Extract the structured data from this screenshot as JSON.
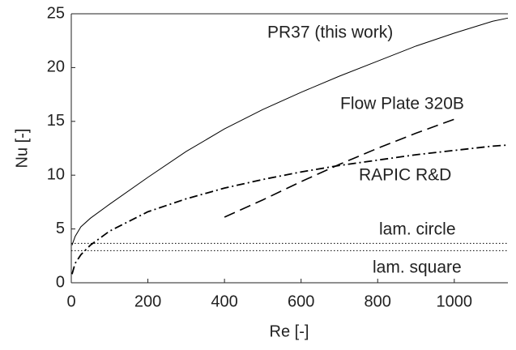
{
  "chart_data": {
    "type": "line",
    "xlabel": "Re [-]",
    "ylabel": "Nu [-]",
    "xlim": [
      0,
      1140
    ],
    "ylim": [
      0,
      25
    ],
    "xticks": [
      0,
      200,
      400,
      600,
      800,
      1000
    ],
    "yticks": [
      0,
      5,
      10,
      15,
      20,
      25
    ],
    "grid": false,
    "series": [
      {
        "name": "PR37 (this work)",
        "color": "#000000",
        "style": "solid",
        "x": [
          2,
          10,
          25,
          50,
          100,
          200,
          300,
          400,
          500,
          600,
          700,
          800,
          900,
          1000,
          1100,
          1140
        ],
        "values": [
          3.5,
          4.3,
          5.2,
          6.0,
          7.3,
          9.8,
          12.2,
          14.3,
          16.1,
          17.7,
          19.2,
          20.6,
          22.0,
          23.2,
          24.3,
          24.6
        ]
      },
      {
        "name": "Flow Plate 320B",
        "color": "#000000",
        "style": "dashed",
        "x": [
          400,
          500,
          600,
          700,
          800,
          900,
          1000
        ],
        "values": [
          6.1,
          7.7,
          9.4,
          11.0,
          12.5,
          13.9,
          15.2
        ]
      },
      {
        "name": "RAPIC R&D",
        "color": "#000000",
        "style": "dashdot",
        "x": [
          2,
          10,
          25,
          50,
          100,
          200,
          300,
          400,
          500,
          600,
          700,
          800,
          900,
          1000,
          1100,
          1140
        ],
        "values": [
          0.8,
          1.8,
          2.6,
          3.5,
          4.8,
          6.6,
          7.8,
          8.8,
          9.6,
          10.3,
          10.9,
          11.4,
          11.9,
          12.3,
          12.7,
          12.8
        ]
      },
      {
        "name": "lam. circle",
        "color": "#000000",
        "style": "dotted",
        "x": [
          0,
          1140
        ],
        "values": [
          3.66,
          3.66
        ]
      },
      {
        "name": "lam. square",
        "color": "#000000",
        "style": "dotted",
        "x": [
          0,
          1140
        ],
        "values": [
          2.98,
          2.98
        ]
      }
    ]
  }
}
